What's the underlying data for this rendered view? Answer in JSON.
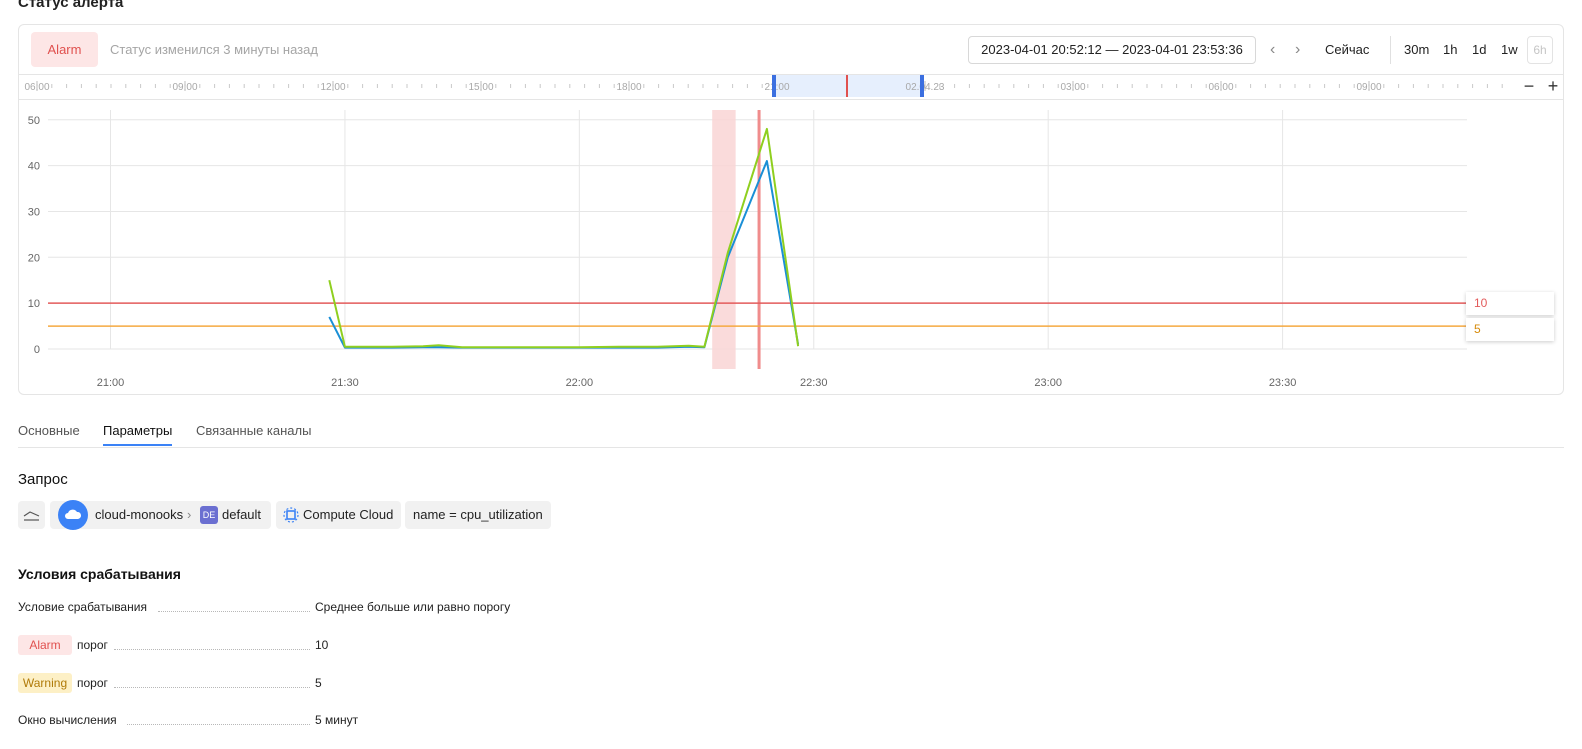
{
  "section_title": "Статус алерта",
  "header": {
    "status_badge": "Alarm",
    "status_text": "Статус изменился 3 минуты назад",
    "range": "2023-04-01 20:52:12 — 2023-04-01 23:53:36",
    "now_label": "Сейчас",
    "presets": [
      "30m",
      "1h",
      "1d",
      "1w",
      "6h"
    ]
  },
  "timeline": {
    "labels": [
      "06:00",
      "09:00",
      "12:00",
      "15:00",
      "18:00",
      "21:00",
      "02.04.23",
      "03:00",
      "06:00",
      "09:00"
    ]
  },
  "chart_data": {
    "type": "line",
    "x": [
      "21:28",
      "21:30",
      "21:36",
      "21:40",
      "21:42",
      "21:45",
      "21:50",
      "21:55",
      "22:00",
      "22:05",
      "22:10",
      "22:14",
      "22:16",
      "22:19",
      "22:24",
      "22:28"
    ],
    "series": [
      {
        "color": "#1a8fd6",
        "values": [
          7,
          0.3,
          0.3,
          0.4,
          0.4,
          0.3,
          0.3,
          0.3,
          0.3,
          0.3,
          0.3,
          0.5,
          0.4,
          20,
          41,
          1
        ]
      },
      {
        "color": "#8fcf1f",
        "values": [
          15,
          0.5,
          0.5,
          0.6,
          0.8,
          0.4,
          0.4,
          0.4,
          0.4,
          0.5,
          0.5,
          0.7,
          0.5,
          21,
          48,
          0.6
        ]
      }
    ],
    "thresholds": [
      {
        "value": 10,
        "color": "#e35b5b",
        "label": "10"
      },
      {
        "value": 5,
        "color": "#f5a940",
        "label": "5"
      }
    ],
    "alert_band": {
      "from": "22:17",
      "to": "22:20"
    },
    "marker": "22:23",
    "x_ticks": [
      "21:00",
      "21:30",
      "22:00",
      "22:30",
      "23:00",
      "23:30"
    ],
    "y_ticks": [
      "0",
      "10",
      "20",
      "30",
      "40",
      "50"
    ],
    "ylim": [
      0,
      53
    ]
  },
  "tabs": [
    "Основные",
    "Параметры",
    "Связанные каналы"
  ],
  "query": {
    "title": "Запрос",
    "cloud": "cloud-monooks",
    "folder_badge": "DE",
    "folder": "default",
    "service": "Compute Cloud",
    "selector": "name = cpu_utilization"
  },
  "conditions": {
    "title": "Условия срабатывания",
    "rows": [
      {
        "label": "Условие срабатывания",
        "value": "Среднее больше или равно порогу"
      },
      {
        "tag": "Alarm",
        "label": "порог",
        "value": "10"
      },
      {
        "tag": "Warning",
        "label": "порог",
        "value": "5"
      },
      {
        "label": "Окно вычисления",
        "value": "5 минут"
      }
    ]
  },
  "colors": {
    "accent": "#3b82f6",
    "alarm": "#e0514f",
    "warning": "#c98a12"
  }
}
